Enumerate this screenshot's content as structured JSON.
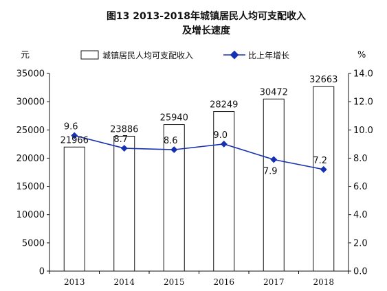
{
  "chart_data": {
    "type": "bar",
    "title_line1": "图13  2013-2018年城镇居民人均可支配收入",
    "title_line2": "及增长速度",
    "categories": [
      "2013",
      "2014",
      "2015",
      "2016",
      "2017",
      "2018"
    ],
    "series": [
      {
        "name": "城镇居民人均可支配收入",
        "type": "bar",
        "axis": "left",
        "values": [
          21966,
          23886,
          25940,
          28249,
          30472,
          32663
        ],
        "labels": [
          "21966",
          "23886",
          "25940",
          "28249",
          "30472",
          "32663"
        ]
      },
      {
        "name": "比上年增长",
        "type": "line",
        "axis": "right",
        "values": [
          9.6,
          8.7,
          8.6,
          9.0,
          7.9,
          7.2
        ],
        "labels": [
          "9.6",
          "8.7",
          "8.6",
          "9.0",
          "7.9",
          "7.2"
        ],
        "color": "#1530b0"
      }
    ],
    "y_left": {
      "unit": "元",
      "ylim": [
        0,
        35000
      ],
      "ticks": [
        "0",
        "5000",
        "10000",
        "15000",
        "20000",
        "25000",
        "30000",
        "35000"
      ]
    },
    "y_right": {
      "unit": "%",
      "ylim": [
        0,
        14
      ],
      "ticks": [
        "0.0",
        "2.0",
        "4.0",
        "6.0",
        "8.0",
        "10.0",
        "12.0",
        "14.0"
      ]
    },
    "legend_position": "top",
    "grid": false
  }
}
